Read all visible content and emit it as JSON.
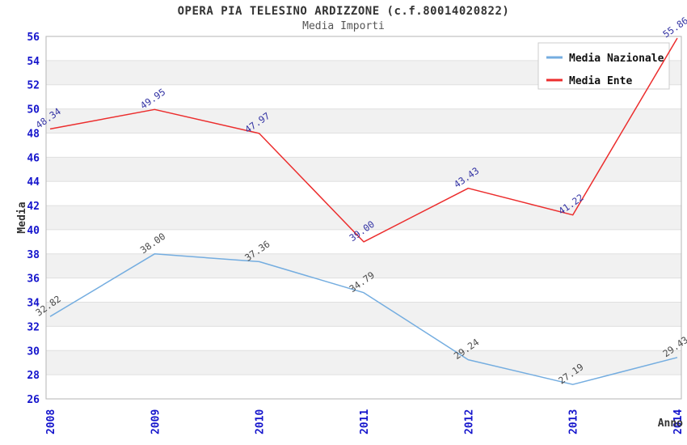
{
  "header": {
    "title": "OPERA PIA TELESINO ARDIZZONE (c.f.80014020822)",
    "subtitle": "Media Importi"
  },
  "chart_data": {
    "type": "line",
    "title": "OPERA PIA TELESINO ARDIZZONE (c.f.80014020822)",
    "subtitle": "Media Importi",
    "x": [
      "2008",
      "2009",
      "2010",
      "2011",
      "2012",
      "2013",
      "2014"
    ],
    "series": [
      {
        "name": "Media Nazionale",
        "color": "#74ade0",
        "label_color": "#4a4a4a",
        "values": [
          32.82,
          38.0,
          37.36,
          34.79,
          29.24,
          27.19,
          29.43
        ]
      },
      {
        "name": "Media Ente",
        "color": "#ec2d2d",
        "label_color": "#3434a4",
        "values": [
          48.34,
          49.95,
          47.97,
          39.0,
          43.43,
          41.22,
          55.86
        ]
      }
    ],
    "xlabel": "Anno",
    "ylabel": "Media",
    "ylim": [
      26,
      56
    ],
    "ytick_step": 2,
    "label_decimals": 2,
    "grid": "horizontal-bands",
    "legend_position": "top-right",
    "colors": {
      "tick_label": "#1515cc",
      "band_gray": "#f1f1f1",
      "gridline": "#e0e0e0",
      "plot_border": "#b5b5b5",
      "axis_title": "#333333",
      "legend_text": "#111111",
      "legend_border": "#cccccc",
      "legend_bg": "#ffffff"
    }
  }
}
